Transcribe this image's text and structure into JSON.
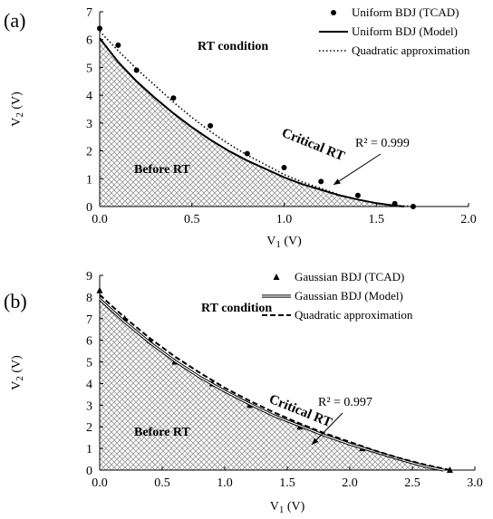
{
  "chart_data": [
    {
      "type": "scatter",
      "panel_label": "(a)",
      "xlabel": "V",
      "xlabel_sub": "1",
      "xlabel_unit": " (V)",
      "ylabel": "V",
      "ylabel_sub": "2",
      "ylabel_unit": " (V)",
      "xlim": [
        0,
        2
      ],
      "ylim": [
        0,
        7
      ],
      "x_ticks": [
        "0.0",
        "0.5",
        "1.0",
        "1.5",
        "2.0"
      ],
      "y_ticks": [
        "0",
        "1",
        "2",
        "3",
        "4",
        "5",
        "6",
        "7"
      ],
      "grid": false,
      "legend_position": "top-right",
      "legend": [
        "Uniform BDJ (TCAD)",
        "Uniform BDJ (Model)",
        "Quadratic approximation"
      ],
      "annotations": {
        "rt_condition": "RT condition",
        "before_rt": "Before RT",
        "critical_rt": "Critical RT",
        "r_squared": "R² = 0.999"
      },
      "series": [
        {
          "name": "Uniform BDJ (TCAD)",
          "style": "markers-circle",
          "x": [
            0,
            0.1,
            0.2,
            0.4,
            0.6,
            0.8,
            1.0,
            1.2,
            1.4,
            1.6,
            1.7
          ],
          "y": [
            6.4,
            5.8,
            4.9,
            3.9,
            2.9,
            1.9,
            1.4,
            0.9,
            0.4,
            0.1,
            0.0
          ]
        },
        {
          "name": "Uniform BDJ (Model)",
          "style": "solid",
          "x": [
            0,
            0.1,
            0.2,
            0.3,
            0.4,
            0.5,
            0.6,
            0.7,
            0.8,
            0.9,
            1.0,
            1.1,
            1.2,
            1.3,
            1.4,
            1.5,
            1.6,
            1.65
          ],
          "y": [
            6.05,
            5.2,
            4.5,
            3.9,
            3.35,
            2.85,
            2.4,
            2.0,
            1.65,
            1.35,
            1.05,
            0.8,
            0.6,
            0.4,
            0.25,
            0.12,
            0.03,
            0.0
          ]
        },
        {
          "name": "Quadratic approximation",
          "style": "dotted",
          "x": [
            0,
            0.1,
            0.2,
            0.3,
            0.4,
            0.5,
            0.6,
            0.7,
            0.8,
            0.9,
            1.0,
            1.1,
            1.2,
            1.3,
            1.4,
            1.5,
            1.6,
            1.7
          ],
          "y": [
            6.3,
            5.6,
            4.95,
            4.35,
            3.75,
            3.2,
            2.7,
            2.25,
            1.85,
            1.5,
            1.15,
            0.88,
            0.65,
            0.42,
            0.25,
            0.12,
            0.04,
            0.0
          ]
        }
      ]
    },
    {
      "type": "scatter",
      "panel_label": "(b)",
      "xlabel": "V",
      "xlabel_sub": "1",
      "xlabel_unit": " (V)",
      "ylabel": "V",
      "ylabel_sub": "2",
      "ylabel_unit": " (V)",
      "xlim": [
        0,
        3
      ],
      "ylim": [
        0,
        9
      ],
      "x_ticks": [
        "0.0",
        "0.5",
        "1.0",
        "1.5",
        "2.0",
        "2.5",
        "3.0"
      ],
      "y_ticks": [
        "0",
        "1",
        "2",
        "3",
        "4",
        "5",
        "6",
        "7",
        "8",
        "9"
      ],
      "grid": false,
      "legend_position": "top-right",
      "legend": [
        "Gaussian BDJ (TCAD)",
        "Gaussian BDJ (Model)",
        "Quadratic approximation"
      ],
      "annotations": {
        "rt_condition": "RT condition",
        "before_rt": "Before RT",
        "critical_rt": "Critical RT",
        "r_squared": "R² = 0.997"
      },
      "series": [
        {
          "name": "Gaussian BDJ (TCAD)",
          "style": "markers-triangle",
          "x": [
            0,
            0.2,
            0.4,
            0.6,
            0.9,
            1.2,
            1.6,
            2.1,
            2.8
          ],
          "y": [
            8.3,
            7.0,
            6.0,
            5.0,
            4.0,
            3.0,
            2.0,
            1.0,
            0.0
          ]
        },
        {
          "name": "Gaussian BDJ (Model)",
          "style": "double",
          "x": [
            0,
            0.2,
            0.4,
            0.6,
            0.8,
            1.0,
            1.2,
            1.4,
            1.6,
            1.8,
            2.0,
            2.2,
            2.4,
            2.6,
            2.75
          ],
          "y": [
            7.9,
            6.85,
            5.9,
            5.05,
            4.3,
            3.65,
            3.05,
            2.5,
            2.05,
            1.6,
            1.2,
            0.85,
            0.5,
            0.18,
            0.0
          ]
        },
        {
          "name": "Quadratic approximation",
          "style": "dashed",
          "x": [
            0,
            0.2,
            0.4,
            0.6,
            0.8,
            1.0,
            1.2,
            1.4,
            1.6,
            1.8,
            2.0,
            2.2,
            2.4,
            2.6,
            2.8
          ],
          "y": [
            8.1,
            7.05,
            6.1,
            5.25,
            4.5,
            3.8,
            3.2,
            2.65,
            2.15,
            1.7,
            1.3,
            0.9,
            0.55,
            0.25,
            0.0
          ]
        }
      ]
    }
  ]
}
